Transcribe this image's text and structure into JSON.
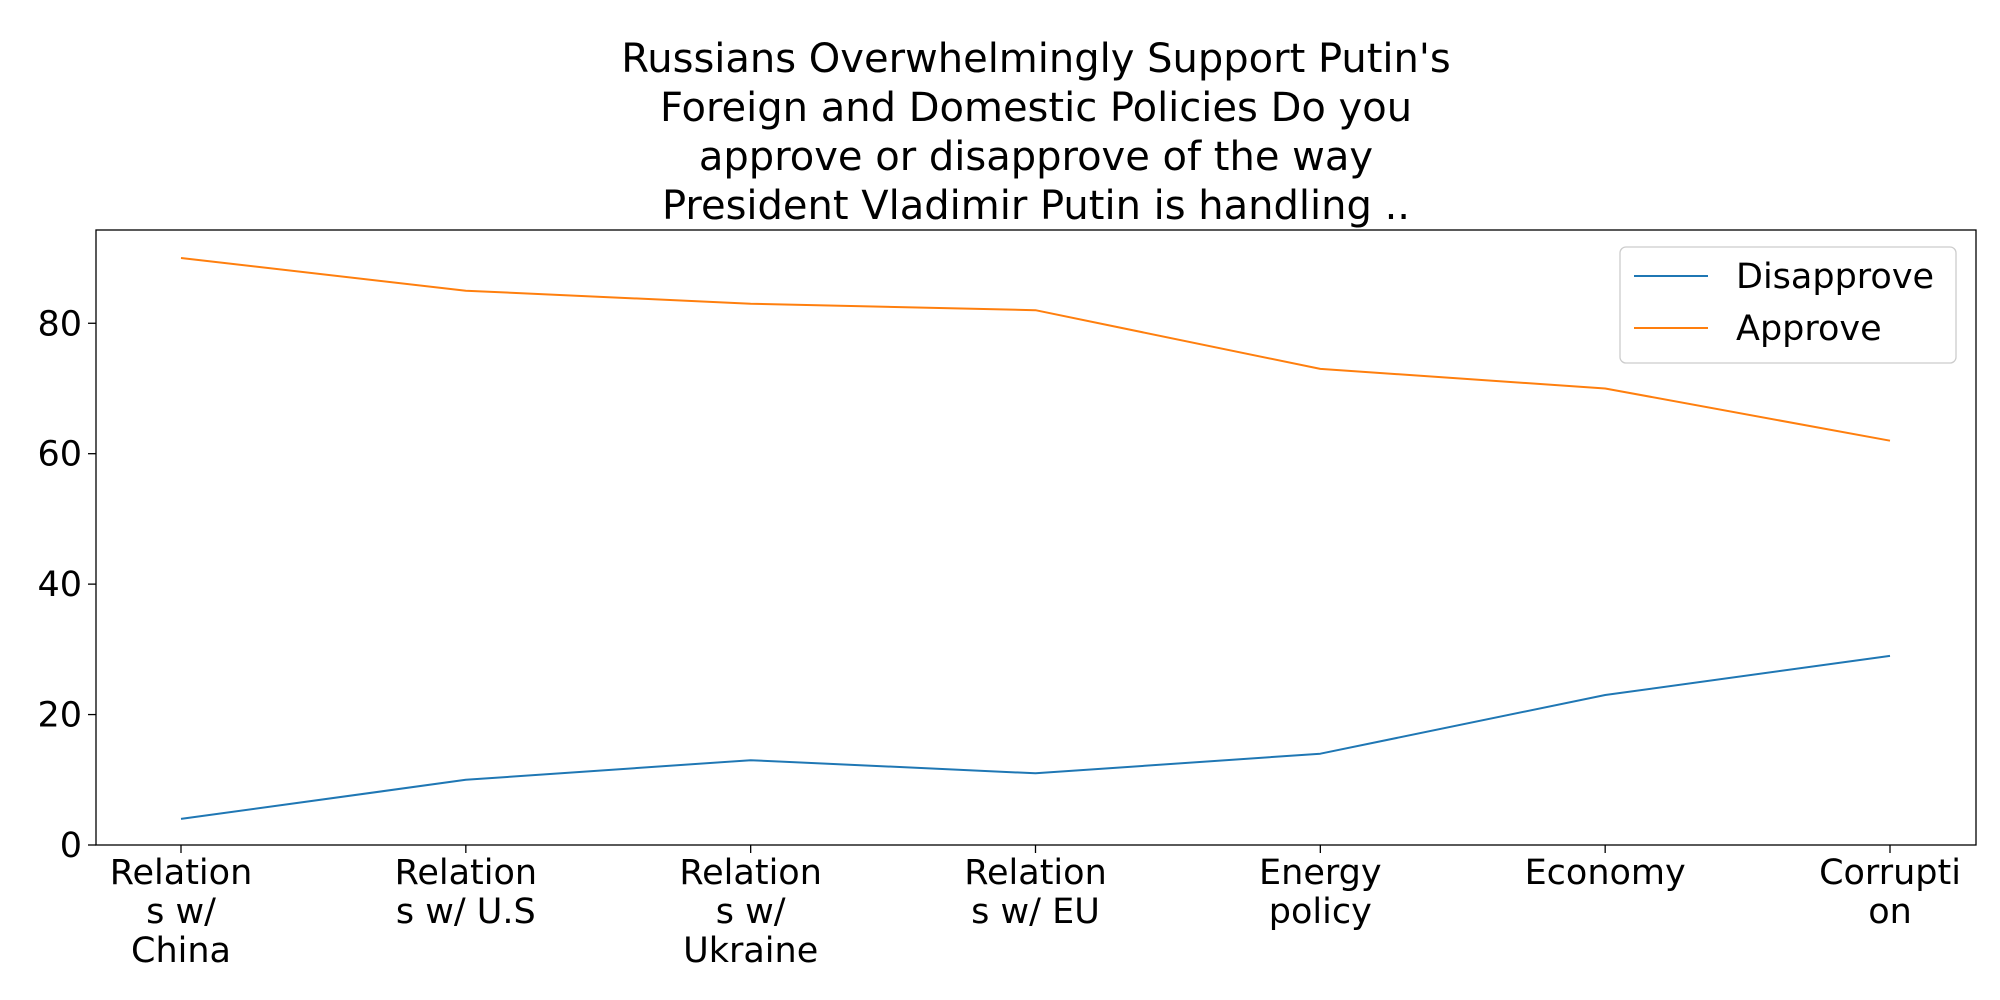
{
  "chart_data": {
    "type": "line",
    "title_lines": [
      "Russians Overwhelmingly Support Putin's",
      "Foreign and Domestic Policies Do you",
      "approve or disapprove of the way",
      "President Vladimir Putin is handling .."
    ],
    "categories": [
      [
        "Relation",
        "s w/",
        "China"
      ],
      [
        "Relation",
        "s w/ U.S"
      ],
      [
        "Relation",
        "s w/",
        "Ukraine"
      ],
      [
        "Relation",
        "s w/ EU"
      ],
      [
        "Energy",
        "policy"
      ],
      [
        "Economy"
      ],
      [
        "Corrupti",
        "on"
      ]
    ],
    "series": [
      {
        "name": "Disapprove",
        "color": "#1f77b4",
        "values": [
          4,
          10,
          13,
          11,
          14,
          23,
          29
        ]
      },
      {
        "name": "Approve",
        "color": "#ff7f0e",
        "values": [
          90,
          85,
          83,
          82,
          73,
          70,
          62
        ]
      }
    ],
    "yticks": [
      0,
      20,
      40,
      60,
      80
    ],
    "ylim": [
      0,
      94.3
    ],
    "grid": false,
    "legend_position": "top-right"
  }
}
